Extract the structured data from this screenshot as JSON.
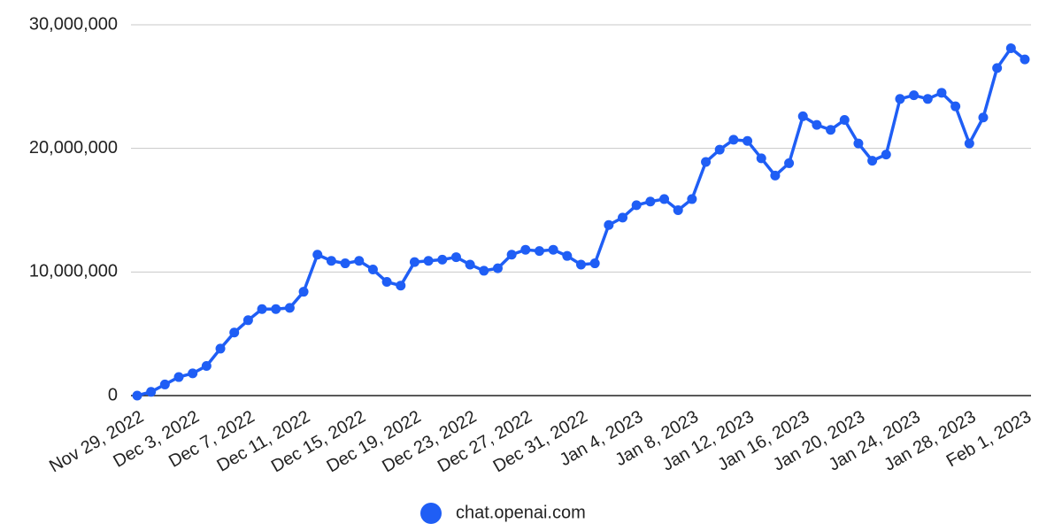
{
  "chart_data": {
    "type": "line",
    "categories": [
      "Nov 29, 2022",
      null,
      null,
      null,
      "Dec 3, 2022",
      null,
      null,
      null,
      "Dec 7, 2022",
      null,
      null,
      null,
      "Dec 11, 2022",
      null,
      null,
      null,
      "Dec 15, 2022",
      null,
      null,
      null,
      "Dec 19, 2022",
      null,
      null,
      null,
      "Dec 23, 2022",
      null,
      null,
      null,
      "Dec 27, 2022",
      null,
      null,
      null,
      "Dec 31, 2022",
      null,
      null,
      null,
      "Jan 4, 2023",
      null,
      null,
      null,
      "Jan 8, 2023",
      null,
      null,
      null,
      "Jan 12, 2023",
      null,
      null,
      null,
      "Jan 16, 2023",
      null,
      null,
      null,
      "Jan 20, 2023",
      null,
      null,
      null,
      "Jan 24, 2023",
      null,
      null,
      null,
      "Jan 28, 2023",
      null,
      null,
      null,
      "Feb 1, 2023"
    ],
    "series": [
      {
        "name": "chat.openai.com",
        "color": "#1f5ef5",
        "values": [
          0,
          300000,
          900000,
          1500000,
          1800000,
          2400000,
          3800000,
          5100000,
          6100000,
          7000000,
          7000000,
          7100000,
          8400000,
          11400000,
          10900000,
          10700000,
          10900000,
          10200000,
          9200000,
          8900000,
          10800000,
          10900000,
          11000000,
          11200000,
          10600000,
          10100000,
          10300000,
          11400000,
          11800000,
          11700000,
          11800000,
          11300000,
          10600000,
          10700000,
          13800000,
          14400000,
          15400000,
          15700000,
          15900000,
          15000000,
          15900000,
          18900000,
          19900000,
          20700000,
          20600000,
          19200000,
          17800000,
          18800000,
          22600000,
          21900000,
          21500000,
          22300000,
          20400000,
          19000000,
          19500000,
          24000000,
          24300000,
          24000000,
          24500000,
          23400000,
          20400000,
          22500000,
          26500000,
          28100000,
          27200000
        ]
      }
    ],
    "ylim": [
      0,
      30000000
    ],
    "yticks": [
      0,
      {
        "value": 10000000,
        "label": "10,000,000"
      },
      {
        "value": 20000000,
        "label": "20,000,000"
      },
      {
        "value": 30000000,
        "label": "30,000,000"
      }
    ],
    "grid": true
  }
}
